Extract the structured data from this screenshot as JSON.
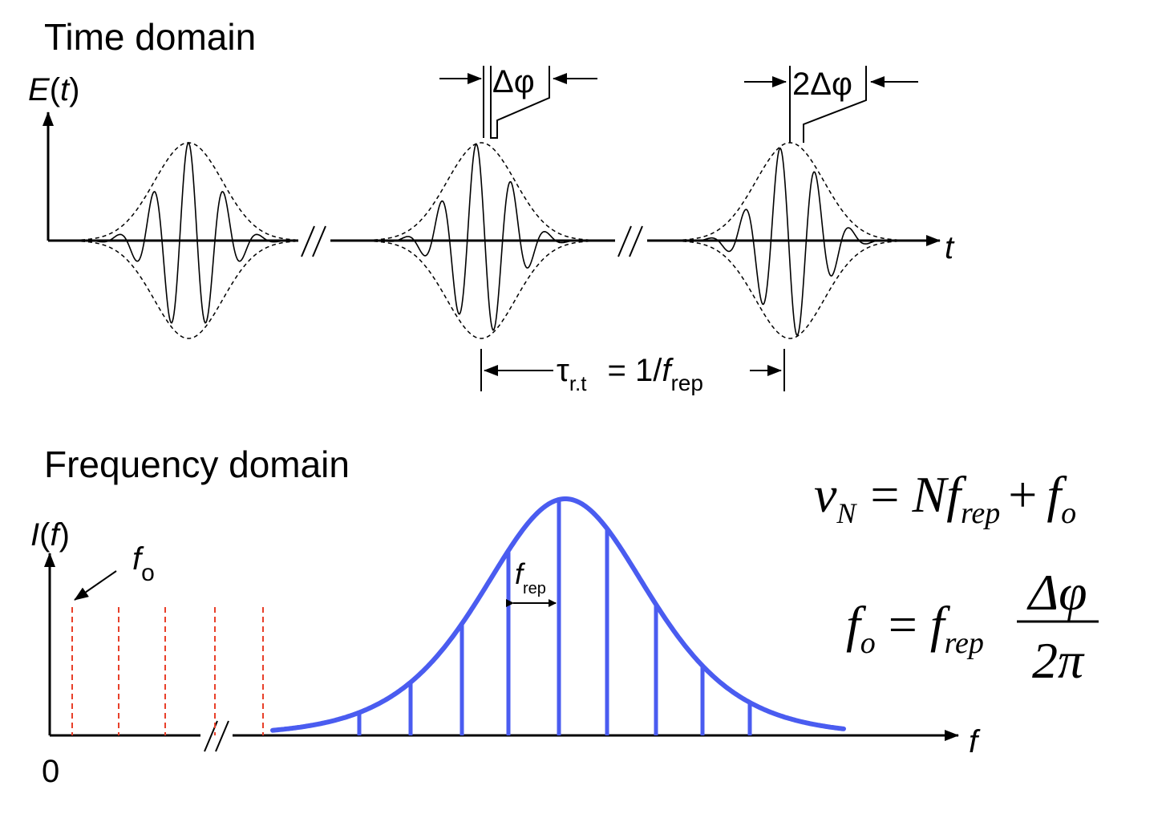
{
  "time_domain": {
    "title": "Time domain",
    "y_axis_label": [
      "E",
      "(",
      "t",
      ")"
    ],
    "x_axis_label": "t",
    "phase_shift_1": "Δφ",
    "phase_shift_2": "2Δφ",
    "period_label": [
      "τ",
      "r.t",
      "= 1/",
      "f",
      "rep"
    ]
  },
  "frequency_domain": {
    "title": "Frequency domain",
    "y_axis_label": [
      "I",
      "(",
      "f",
      ")"
    ],
    "x_axis_label": "f",
    "origin_label": "0",
    "offset_label": [
      "f",
      "o"
    ],
    "spacing_label": [
      "f",
      "rep"
    ],
    "equation_1": [
      "ν",
      "N",
      "=",
      "Nf",
      "rep",
      "+",
      "f",
      "o"
    ],
    "equation_2": [
      "f",
      "o",
      "=",
      "f",
      "rep",
      "Δφ",
      "2π"
    ]
  }
}
